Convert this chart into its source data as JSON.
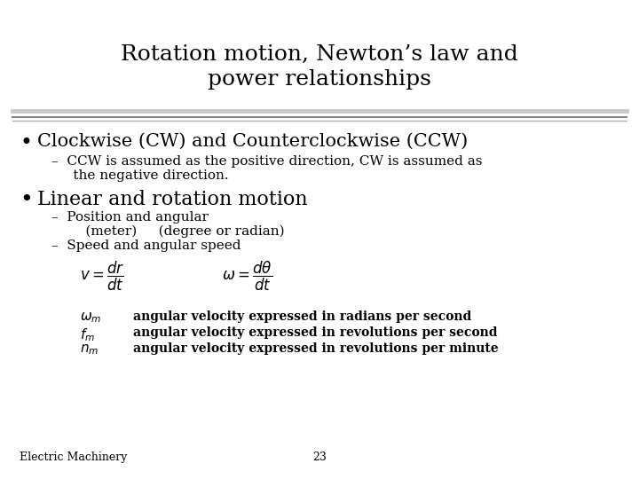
{
  "title_line1": "Rotation motion, Newton’s law and",
  "title_line2": "power relationships",
  "bg_color": "#ffffff",
  "title_color": "#000000",
  "text_color": "#000000",
  "bullet1": "Clockwise (CW) and Counterclockwise (CCW)",
  "sub1a": "–  CCW is assumed as the positive direction, CW is assumed as",
  "sub1b": "     the negative direction.",
  "bullet2": "Linear and rotation motion",
  "sub2a": "–  Position and angular",
  "sub2b": "     (meter)     (degree or radian)",
  "sub2c": "–  Speed and angular speed",
  "footer_left": "Electric Machinery",
  "footer_num": "23",
  "title_fontsize": 18,
  "bullet1_fontsize": 15,
  "bullet2_fontsize": 16,
  "sub_fontsize": 11,
  "eq_fontsize": 12,
  "sym_fontsize": 11,
  "footer_fontsize": 9
}
